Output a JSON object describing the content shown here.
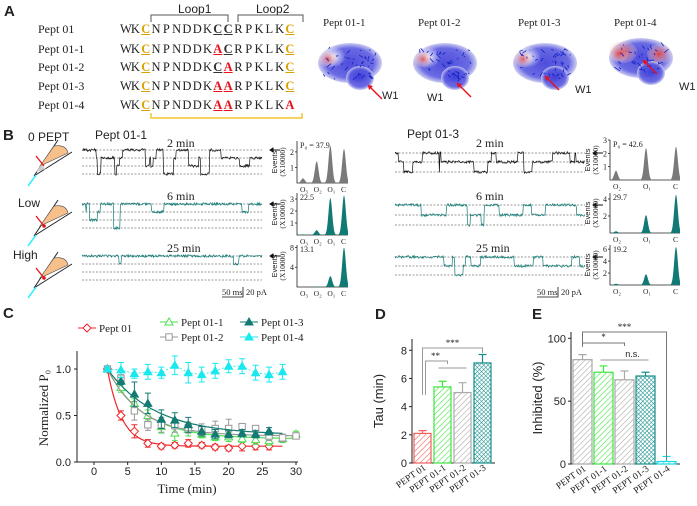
{
  "panel_labels": [
    "A",
    "B",
    "C",
    "D",
    "E"
  ],
  "panel_a": {
    "loop1": "Loop1",
    "loop2": "Loop2",
    "sequences": [
      {
        "name": "Pept 01",
        "seq": "WKCNPNDDKCCRPKLKC",
        "style": "nnynnnnnnddnnnnny"
      },
      {
        "name": "Pept 01-1",
        "seq": "WKCNPNDDKACRPKLKC",
        "style": "nnynnnnnnrdnnnnny"
      },
      {
        "name": "Pept 01-2",
        "seq": "WKCNPNDDKCARPKLKC",
        "style": "nnynnnnnndrnnnnny"
      },
      {
        "name": "Pept 01-3",
        "seq": "WKCNPNDDKAARPKLKC",
        "style": "nnynnnnnnrrnnnnny"
      },
      {
        "name": "Pept 01-4",
        "seq": "WKCNPNDDKAARPKLKA",
        "style": "nnynnnnnnrrnnnnnR"
      }
    ],
    "structures": [
      {
        "title": "Pept 01-1",
        "marker": "W1"
      },
      {
        "title": "Pept 01-2",
        "marker": "W1"
      },
      {
        "title": "Pept 01-3",
        "marker": "W1"
      },
      {
        "title": "Pept 01-4",
        "marker": "W1"
      }
    ]
  },
  "panel_b": {
    "conditions": [
      "0 PEPT",
      "Low",
      "High"
    ],
    "groups": [
      {
        "title": "Pept 01-1",
        "times": [
          "2 min",
          "6 min",
          "25 min"
        ],
        "hist": [
          {
            "po": "P₀ = 37.9",
            "ymax": 2.7,
            "ticks": [
              1,
              2
            ],
            "levels": [
              "O₃",
              "O₂",
              "O₁",
              "C"
            ],
            "peaks": [
              0.3,
              1.4,
              2.4,
              2.2
            ]
          },
          {
            "po": "22.5",
            "ymax": 3.5,
            "ticks": [
              1,
              2,
              3
            ],
            "levels": [
              "O₃",
              "O₂",
              "O₁",
              "C"
            ],
            "peaks": [
              0.05,
              0.4,
              3.1,
              3.3
            ]
          },
          {
            "po": "13.1",
            "ymax": 8.5,
            "ticks": [
              4,
              8
            ],
            "levels": [
              "O₃",
              "O₂",
              "O₁",
              "C"
            ],
            "peaks": [
              0.05,
              0.1,
              2.2,
              8
            ]
          }
        ]
      },
      {
        "title": "Pept 01-3",
        "times": [
          "2 min",
          "6 min",
          "25 min"
        ],
        "hist": [
          {
            "po": "P₀ = 42.6",
            "ymax": 3,
            "ticks": [
              1,
              2,
              3
            ],
            "levels": [
              "O₂",
              "O₁",
              "C"
            ],
            "peaks": [
              0.7,
              2.4,
              2.5
            ]
          },
          {
            "po": "29.7",
            "ymax": 4.7,
            "ticks": [
              2,
              4
            ],
            "levels": [
              "O₂",
              "O₁",
              "C"
            ],
            "peaks": [
              0.2,
              2.1,
              4.5
            ]
          },
          {
            "po": "19.2",
            "ymax": 6.7,
            "ticks": [
              2,
              4,
              6
            ],
            "levels": [
              "O₂",
              "O₁",
              "C"
            ],
            "peaks": [
              0.2,
              1.8,
              6.4
            ]
          }
        ]
      }
    ],
    "hist_ylabel": [
      "Events",
      "(X10000)"
    ],
    "scale_time": "50 ms",
    "scale_current": "20 pA",
    "colors": {
      "control": "#111111",
      "treated": "#117a74",
      "hist_control": "#7a7a7a"
    }
  },
  "chart_data": [
    {
      "type": "line",
      "panel": "C",
      "xlabel": "Time (min)",
      "ylabel": "Normalized P₀",
      "xlim": [
        -3,
        30.5
      ],
      "ylim": [
        0,
        1.2
      ],
      "xticks": [
        0,
        5,
        10,
        15,
        20,
        25,
        30
      ],
      "yticks": [
        "0.0",
        "0.5",
        "1.0"
      ],
      "legend_position": "top",
      "series": [
        {
          "name": "Pept 01",
          "color": "#f0262a",
          "marker": "diamond-open",
          "x": [
            2,
            4,
            6,
            8,
            10,
            12,
            14,
            16,
            18,
            20,
            22,
            24,
            26
          ],
          "y": [
            1.0,
            0.5,
            0.33,
            0.2,
            0.17,
            0.18,
            0.2,
            0.18,
            0.16,
            0.15,
            0.17,
            0.17,
            0.17
          ],
          "err": [
            0.02,
            0.05,
            0.07,
            0.04,
            0.03,
            0.03,
            0.04,
            0.03,
            0.03,
            0.03,
            0.05,
            0.04,
            0.04
          ],
          "fit": {
            "plateau": 0.17,
            "tau": 2.1,
            "xend": 28
          }
        },
        {
          "name": "Pept 01-1",
          "color": "#4ee04e",
          "marker": "triangle-open",
          "x": [
            2,
            4,
            6,
            8,
            10,
            12,
            14,
            16,
            18,
            20,
            22,
            24,
            26,
            28,
            30
          ],
          "y": [
            1.0,
            0.8,
            0.63,
            0.5,
            0.38,
            0.31,
            0.35,
            0.3,
            0.27,
            0.27,
            0.25,
            0.24,
            0.23,
            0.25,
            0.3
          ],
          "err": [
            0.02,
            0.05,
            0.05,
            0.06,
            0.07,
            0.08,
            0.07,
            0.04,
            0.04,
            0.05,
            0.04,
            0.05,
            0.05,
            0.04,
            0.03
          ],
          "fit": {
            "plateau": 0.25,
            "tau": 5.4,
            "xend": 30
          }
        },
        {
          "name": "Pept 01-2",
          "color": "#999999",
          "marker": "square-open",
          "x": [
            2,
            4,
            6,
            8,
            10,
            12,
            14,
            16,
            18,
            20,
            22,
            24,
            26,
            28,
            30
          ],
          "y": [
            1.0,
            0.9,
            0.55,
            0.4,
            0.4,
            0.39,
            0.37,
            0.35,
            0.36,
            0.36,
            0.38,
            0.36,
            0.28,
            0.26,
            0.28
          ],
          "err": [
            0.02,
            0.04,
            0.1,
            0.06,
            0.08,
            0.07,
            0.06,
            0.06,
            0.08,
            0.1,
            0.03,
            0.03,
            0.05,
            0.04,
            0.03
          ],
          "fit": {
            "plateau": 0.28,
            "tau": 5.0,
            "xend": 30
          }
        },
        {
          "name": "Pept 01-3",
          "color": "#127a72",
          "marker": "triangle-filled",
          "x": [
            2,
            4,
            6,
            8,
            10,
            12,
            14,
            16,
            18,
            20,
            22,
            24,
            26
          ],
          "y": [
            1.0,
            0.87,
            0.73,
            0.63,
            0.46,
            0.45,
            0.4,
            0.33,
            0.3,
            0.3,
            0.31,
            0.3,
            0.33
          ],
          "err": [
            0.02,
            0.04,
            0.13,
            0.11,
            0.1,
            0.08,
            0.08,
            0.05,
            0.05,
            0.04,
            0.04,
            0.04,
            0.04
          ],
          "fit": {
            "plateau": 0.29,
            "tau": 7.1,
            "xend": 28
          }
        },
        {
          "name": "Pept 01-4",
          "color": "#19e8ee",
          "marker": "triangle-filled",
          "x": [
            2,
            4,
            6,
            8,
            10,
            12,
            14,
            16,
            18,
            20,
            22,
            24,
            26,
            28
          ],
          "y": [
            1.0,
            0.99,
            0.95,
            0.97,
            0.96,
            1.04,
            0.96,
            0.94,
            0.98,
            1.03,
            1.03,
            0.96,
            0.94,
            0.97
          ],
          "err": [
            0.02,
            0.08,
            0.05,
            0.08,
            0.06,
            0.1,
            0.11,
            0.08,
            0.08,
            0.07,
            0.08,
            0.08,
            0.08,
            0.08
          ],
          "dashed": true
        }
      ]
    },
    {
      "type": "bar",
      "panel": "D",
      "ylabel": "Tau (min)",
      "ylim": [
        0,
        8.8
      ],
      "yticks": [
        0,
        2,
        4,
        6,
        8
      ],
      "categories": [
        "PEPT 01",
        "PEPT 01-1",
        "PEPT 01-2",
        "PEPT 01-3"
      ],
      "values": [
        2.1,
        5.4,
        5.0,
        7.1
      ],
      "err": [
        0.2,
        0.4,
        0.7,
        0.6
      ],
      "colors": [
        "#f26060",
        "#3ee63e",
        "#aaaaaa",
        "#168f8a"
      ],
      "patterns": [
        "hatch",
        "hatch",
        "hatch",
        "cross"
      ],
      "significance": [
        {
          "label": "**",
          "from": 0,
          "to": "1-2"
        },
        {
          "label": "***",
          "from": 0,
          "to": 3
        }
      ]
    },
    {
      "type": "bar",
      "panel": "E",
      "ylabel": "Inhibited (%)",
      "ylim": [
        0,
        105
      ],
      "yticks": [
        0,
        50,
        100
      ],
      "categories": [
        "PEPT 01",
        "PEPT 01-1",
        "PEPT 01-2",
        "PEPT 01-3",
        "PEPT 01-4"
      ],
      "values": [
        83,
        73,
        67,
        70,
        2
      ],
      "err": [
        4,
        5,
        7,
        3,
        4
      ],
      "colors": [
        "#a8a8a8",
        "#3ee63e",
        "#aaaaaa",
        "#168f8a",
        "#19d8e6"
      ],
      "patterns": [
        "hatch",
        "hatch",
        "hatch",
        "cross",
        "hatch"
      ],
      "significance": [
        {
          "label": "*",
          "from": 0,
          "to": 2
        },
        {
          "label": "n.s.",
          "from": 1,
          "to": 3
        },
        {
          "label": "***",
          "from": 0,
          "to": 4
        }
      ]
    }
  ]
}
